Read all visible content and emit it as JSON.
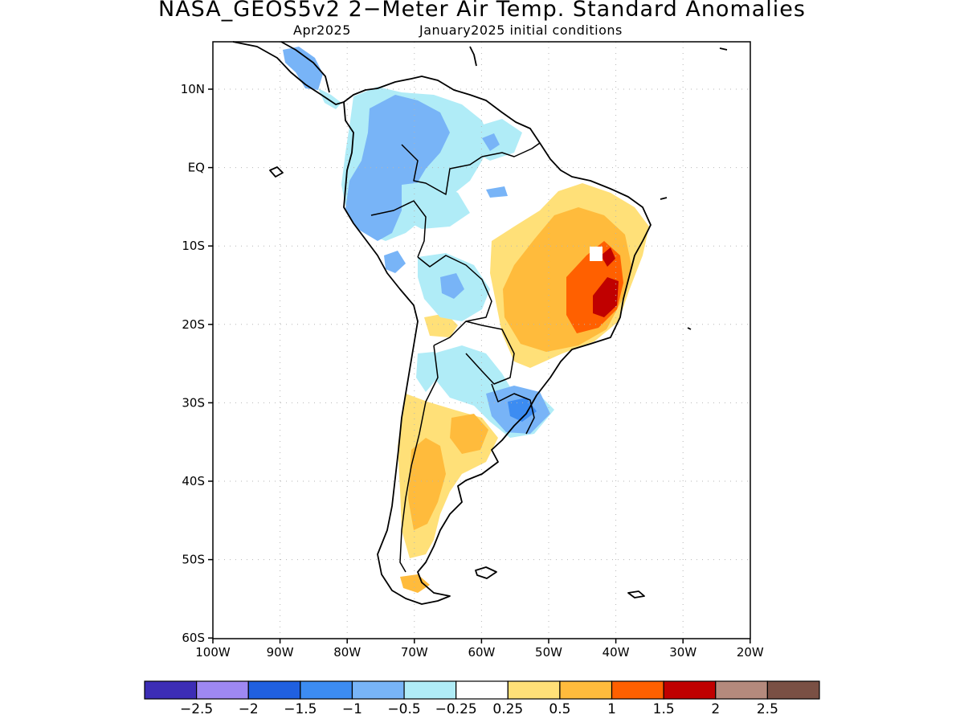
{
  "header": {
    "title": "NASA_GEOS5v2 2−Meter Air Temp. Standard Anomalies",
    "month": "Apr2025",
    "init": "January2025 initial conditions"
  },
  "axes": {
    "lon_labels": [
      "100W",
      "90W",
      "80W",
      "70W",
      "60W",
      "50W",
      "40W",
      "30W",
      "20W"
    ],
    "lat_labels": [
      "10N",
      "EQ",
      "10S",
      "20S",
      "30S",
      "40S",
      "50S",
      "60S"
    ]
  },
  "colorbar": {
    "colors": [
      "#3c2db5",
      "#9e88f2",
      "#2060e0",
      "#3c8cf2",
      "#78b4f7",
      "#b0ecf7",
      "#ffffff",
      "#ffe078",
      "#ffbb3c",
      "#ff6000",
      "#c00000",
      "#b48a7d",
      "#7a5044"
    ],
    "labels": [
      "−2.5",
      "−2",
      "−1.5",
      "−1",
      "−0.5",
      "−0.25",
      "0.25",
      "0.5",
      "1",
      "1.5",
      "2",
      "2.5"
    ]
  },
  "colors": {
    "land_outline": "#000000",
    "grid": "#bbbbbb"
  }
}
